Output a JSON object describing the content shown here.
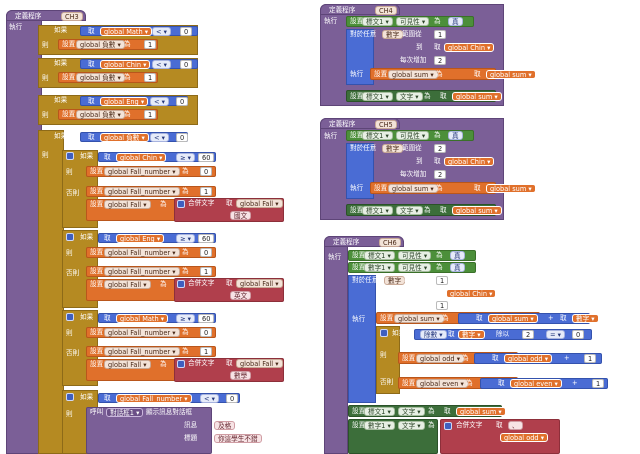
{
  "kw": {
    "define": "定義程序",
    "do": "執行",
    "if": "如果",
    "then": "則",
    "else": "否則",
    "set": "設置",
    "get": "取",
    "to": "為",
    "join": "合併文字",
    "for": "對於任意",
    "num": "數字",
    "range": "範圍從",
    "upto": "到",
    "step": "每次增加",
    "call": "呼叫",
    "msg": "訊息",
    "title": "標題",
    "mod": "除數",
    "div": "除以"
  },
  "ch3": {
    "name": "CH3",
    "globals": [
      "global Math",
      "global Chin",
      "global Eng",
      "global 負數"
    ],
    "counts": [
      "global 負數",
      "global 負數",
      "global 負數",
      "global 負數"
    ],
    "lt": "< ",
    "zero": "0",
    "one": "1",
    "sixty": "60",
    "ge": "≥",
    "fall": "global Fall_number",
    "fallv": "global Fall",
    "subjects": [
      "國文",
      "英文",
      "數學"
    ],
    "subjects_get": [
      "global Chin",
      "global Eng",
      "global Math"
    ],
    "dialog": "對話框1",
    "dialog_text": "顯示訊息對話框",
    "dlg_msg": "及格",
    "dlg_title": "你這學生不錯"
  },
  "ch4": {
    "name": "CH4",
    "label": "標文1",
    "prop": "可見性",
    "true": "真",
    "from": "1",
    "to_var": "global Chin",
    "step": "2",
    "sum": "global sum",
    "text": "文字"
  },
  "ch5": {
    "name": "CH5",
    "from": "2",
    "step": "2"
  },
  "ch6": {
    "name": "CH6",
    "label1": "標文1",
    "label2": "數字1",
    "from": "1",
    "step": "1",
    "odd": "global odd",
    "even": "global even",
    "two": "2",
    "zero": "0",
    "ge": "=",
    "plus": "+",
    "one": "1",
    "comma": "、"
  }
}
